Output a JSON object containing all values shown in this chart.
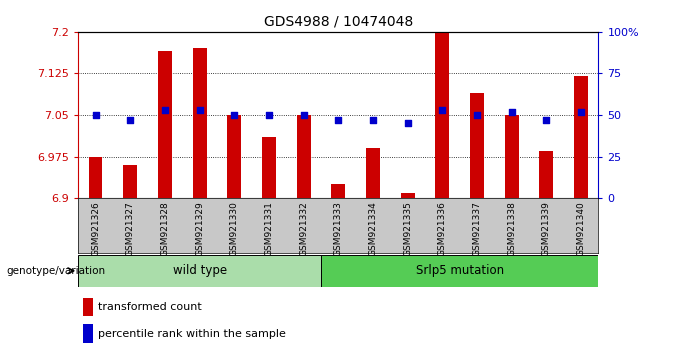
{
  "title": "GDS4988 / 10474048",
  "samples": [
    "GSM921326",
    "GSM921327",
    "GSM921328",
    "GSM921329",
    "GSM921330",
    "GSM921331",
    "GSM921332",
    "GSM921333",
    "GSM921334",
    "GSM921335",
    "GSM921336",
    "GSM921337",
    "GSM921338",
    "GSM921339",
    "GSM921340"
  ],
  "transformed_count": [
    6.975,
    6.96,
    7.165,
    7.17,
    7.05,
    7.01,
    7.05,
    6.925,
    6.99,
    6.91,
    7.2,
    7.09,
    7.05,
    6.985,
    7.12
  ],
  "percentile_rank": [
    50,
    47,
    53,
    53,
    50,
    50,
    50,
    47,
    47,
    45,
    53,
    50,
    52,
    47,
    52
  ],
  "ylim_left": [
    6.9,
    7.2
  ],
  "ylim_right": [
    0,
    100
  ],
  "yticks_left": [
    6.9,
    6.975,
    7.05,
    7.125,
    7.2
  ],
  "ytick_left_labels": [
    "6.9",
    "6.975",
    "7.05",
    "7.125",
    "7.2"
  ],
  "yticks_right": [
    0,
    25,
    50,
    75,
    100
  ],
  "ytick_right_labels": [
    "0",
    "25",
    "50",
    "75",
    "100%"
  ],
  "grid_vals": [
    6.975,
    7.05,
    7.125
  ],
  "bar_color": "#cc0000",
  "dot_color": "#0000cc",
  "n_wild": 7,
  "n_mut": 8,
  "wild_type_label": "wild type",
  "mutation_label": "Srlp5 mutation",
  "genotype_label": "genotype/variation",
  "legend_bar_label": "transformed count",
  "legend_dot_label": "percentile rank within the sample",
  "tick_color_left": "#cc0000",
  "tick_color_right": "#0000cc",
  "sample_bg_color": "#c8c8c8",
  "wild_type_color": "#aaddaa",
  "mutation_color": "#55cc55",
  "bar_width": 0.4
}
